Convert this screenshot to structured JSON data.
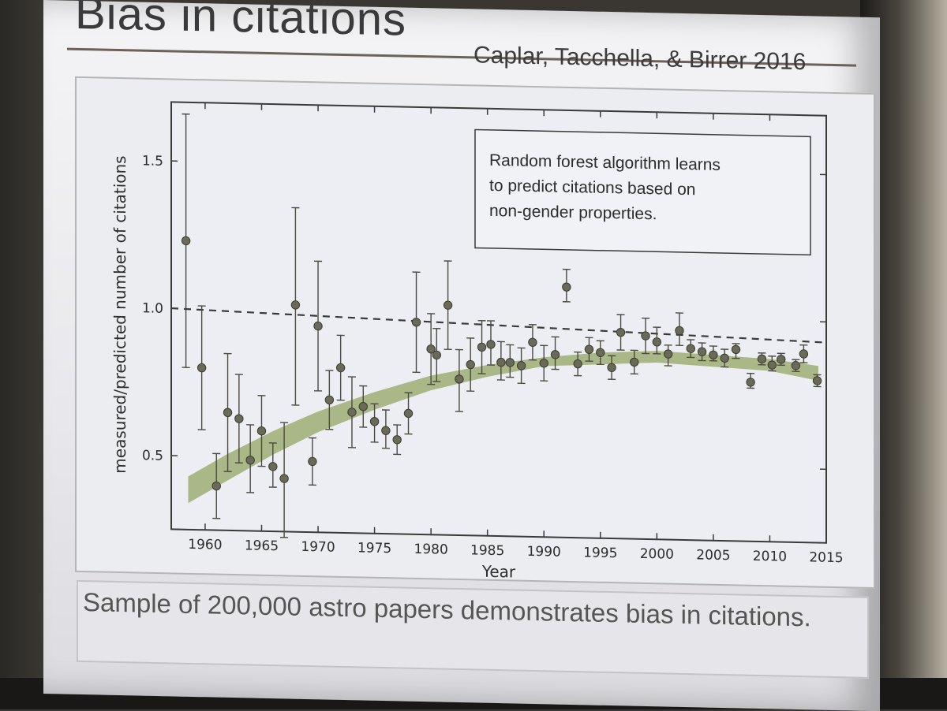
{
  "slide": {
    "title": "Bias in citations",
    "citation": "Caplar, Tacchella, & Birrer 2016",
    "caption": "Sample of 200,000 astro papers demonstrates bias in citations."
  },
  "colors": {
    "points": "#6a6a58",
    "band": "#9fad72",
    "dashed": "#3a3a3a"
  },
  "chart_data": {
    "type": "scatter",
    "title": "",
    "xlabel": "Year",
    "ylabel": "measured/predicted number of citations",
    "xlim": [
      1957,
      2015
    ],
    "ylim": [
      0.25,
      1.7
    ],
    "x_ticks": [
      1960,
      1965,
      1970,
      1975,
      1980,
      1985,
      1990,
      1995,
      2000,
      2005,
      2010,
      2015
    ],
    "y_ticks": [
      0.5,
      1.0,
      1.5
    ],
    "x_tick_labels": [
      "1960",
      "1965",
      "1970",
      "1975",
      "1980",
      "1985",
      "1990",
      "1995",
      "2000",
      "2005",
      "2010",
      "2015"
    ],
    "y_tick_labels": [
      "0.5",
      "1.0",
      "1.5"
    ],
    "reference_line": {
      "y_start": 1.0,
      "y_end": 0.93,
      "style": "dashed"
    },
    "annotation": "Random forest algorithm learns to predict citations based on non-gender properties.",
    "annotation_lines": [
      "Random forest algorithm learns",
      "to predict citations based on",
      "non-gender properties."
    ],
    "trend_band": [
      {
        "x": 1958.5,
        "lo": 0.34,
        "hi": 0.43
      },
      {
        "x": 1962,
        "lo": 0.42,
        "hi": 0.51
      },
      {
        "x": 1966,
        "lo": 0.51,
        "hi": 0.59
      },
      {
        "x": 1970,
        "lo": 0.59,
        "hi": 0.66
      },
      {
        "x": 1975,
        "lo": 0.67,
        "hi": 0.73
      },
      {
        "x": 1980,
        "lo": 0.74,
        "hi": 0.79
      },
      {
        "x": 1985,
        "lo": 0.79,
        "hi": 0.83
      },
      {
        "x": 1990,
        "lo": 0.83,
        "hi": 0.86
      },
      {
        "x": 1995,
        "lo": 0.84,
        "hi": 0.88
      },
      {
        "x": 2000,
        "lo": 0.85,
        "hi": 0.89
      },
      {
        "x": 2005,
        "lo": 0.84,
        "hi": 0.88
      },
      {
        "x": 2010,
        "lo": 0.83,
        "hi": 0.87
      },
      {
        "x": 2014.3,
        "lo": 0.8,
        "hi": 0.85
      }
    ],
    "points": [
      {
        "x": 1958.3,
        "y": 1.23,
        "lo": 0.8,
        "hi": 1.66
      },
      {
        "x": 1959.7,
        "y": 0.8,
        "lo": 0.59,
        "hi": 1.01
      },
      {
        "x": 1961,
        "y": 0.4,
        "lo": 0.29,
        "hi": 0.51
      },
      {
        "x": 1962,
        "y": 0.65,
        "lo": 0.45,
        "hi": 0.85
      },
      {
        "x": 1963,
        "y": 0.63,
        "lo": 0.48,
        "hi": 0.78
      },
      {
        "x": 1964,
        "y": 0.49,
        "lo": 0.38,
        "hi": 0.61
      },
      {
        "x": 1965,
        "y": 0.59,
        "lo": 0.47,
        "hi": 0.71
      },
      {
        "x": 1966,
        "y": 0.47,
        "lo": 0.4,
        "hi": 0.55
      },
      {
        "x": 1967,
        "y": 0.43,
        "lo": 0.23,
        "hi": 0.62
      },
      {
        "x": 1968,
        "y": 1.02,
        "lo": 0.68,
        "hi": 1.35
      },
      {
        "x": 1969.5,
        "y": 0.49,
        "lo": 0.41,
        "hi": 0.57
      },
      {
        "x": 1970,
        "y": 0.95,
        "lo": 0.73,
        "hi": 1.17
      },
      {
        "x": 1971,
        "y": 0.7,
        "lo": 0.6,
        "hi": 0.8
      },
      {
        "x": 1972,
        "y": 0.81,
        "lo": 0.7,
        "hi": 0.92
      },
      {
        "x": 1973,
        "y": 0.66,
        "lo": 0.54,
        "hi": 0.78
      },
      {
        "x": 1974,
        "y": 0.68,
        "lo": 0.61,
        "hi": 0.75
      },
      {
        "x": 1975,
        "y": 0.63,
        "lo": 0.56,
        "hi": 0.69
      },
      {
        "x": 1976,
        "y": 0.6,
        "lo": 0.54,
        "hi": 0.67
      },
      {
        "x": 1977,
        "y": 0.57,
        "lo": 0.52,
        "hi": 0.62
      },
      {
        "x": 1978,
        "y": 0.66,
        "lo": 0.59,
        "hi": 0.73
      },
      {
        "x": 1978.7,
        "y": 0.97,
        "lo": 0.8,
        "hi": 1.14
      },
      {
        "x": 1980,
        "y": 0.88,
        "lo": 0.76,
        "hi": 1.0
      },
      {
        "x": 1980.5,
        "y": 0.86,
        "lo": 0.77,
        "hi": 0.95
      },
      {
        "x": 1981.5,
        "y": 1.03,
        "lo": 0.88,
        "hi": 1.18
      },
      {
        "x": 1982.5,
        "y": 0.78,
        "lo": 0.67,
        "hi": 0.88
      },
      {
        "x": 1983.5,
        "y": 0.83,
        "lo": 0.74,
        "hi": 0.92
      },
      {
        "x": 1984.5,
        "y": 0.89,
        "lo": 0.8,
        "hi": 0.98
      },
      {
        "x": 1985.3,
        "y": 0.9,
        "lo": 0.83,
        "hi": 0.98
      },
      {
        "x": 1986.2,
        "y": 0.84,
        "lo": 0.78,
        "hi": 0.91
      },
      {
        "x": 1987,
        "y": 0.84,
        "lo": 0.79,
        "hi": 0.9
      },
      {
        "x": 1988,
        "y": 0.83,
        "lo": 0.77,
        "hi": 0.89
      },
      {
        "x": 1989,
        "y": 0.91,
        "lo": 0.85,
        "hi": 0.97
      },
      {
        "x": 1990,
        "y": 0.84,
        "lo": 0.78,
        "hi": 0.9
      },
      {
        "x": 1991,
        "y": 0.87,
        "lo": 0.82,
        "hi": 0.93
      },
      {
        "x": 1992,
        "y": 1.1,
        "lo": 1.05,
        "hi": 1.16
      },
      {
        "x": 1993,
        "y": 0.84,
        "lo": 0.8,
        "hi": 0.88
      },
      {
        "x": 1994,
        "y": 0.89,
        "lo": 0.85,
        "hi": 0.93
      },
      {
        "x": 1995,
        "y": 0.88,
        "lo": 0.84,
        "hi": 0.92
      },
      {
        "x": 1996,
        "y": 0.83,
        "lo": 0.79,
        "hi": 0.87
      },
      {
        "x": 1996.8,
        "y": 0.95,
        "lo": 0.89,
        "hi": 1.01
      },
      {
        "x": 1998,
        "y": 0.85,
        "lo": 0.81,
        "hi": 0.89
      },
      {
        "x": 1999,
        "y": 0.94,
        "lo": 0.88,
        "hi": 1.0
      },
      {
        "x": 2000,
        "y": 0.92,
        "lo": 0.88,
        "hi": 0.97
      },
      {
        "x": 2001,
        "y": 0.88,
        "lo": 0.84,
        "hi": 0.91
      },
      {
        "x": 2002,
        "y": 0.96,
        "lo": 0.91,
        "hi": 1.02
      },
      {
        "x": 2003,
        "y": 0.9,
        "lo": 0.87,
        "hi": 0.93
      },
      {
        "x": 2004,
        "y": 0.89,
        "lo": 0.86,
        "hi": 0.92
      },
      {
        "x": 2005,
        "y": 0.88,
        "lo": 0.86,
        "hi": 0.91
      },
      {
        "x": 2006,
        "y": 0.87,
        "lo": 0.84,
        "hi": 0.9
      },
      {
        "x": 2007,
        "y": 0.9,
        "lo": 0.87,
        "hi": 0.92
      },
      {
        "x": 2008.3,
        "y": 0.79,
        "lo": 0.77,
        "hi": 0.82
      },
      {
        "x": 2009.3,
        "y": 0.87,
        "lo": 0.85,
        "hi": 0.89
      },
      {
        "x": 2010.2,
        "y": 0.85,
        "lo": 0.83,
        "hi": 0.88
      },
      {
        "x": 2011,
        "y": 0.87,
        "lo": 0.85,
        "hi": 0.89
      },
      {
        "x": 2012.3,
        "y": 0.85,
        "lo": 0.83,
        "hi": 0.87
      },
      {
        "x": 2013,
        "y": 0.89,
        "lo": 0.86,
        "hi": 0.92
      },
      {
        "x": 2014.2,
        "y": 0.8,
        "lo": 0.78,
        "hi": 0.82
      }
    ]
  }
}
